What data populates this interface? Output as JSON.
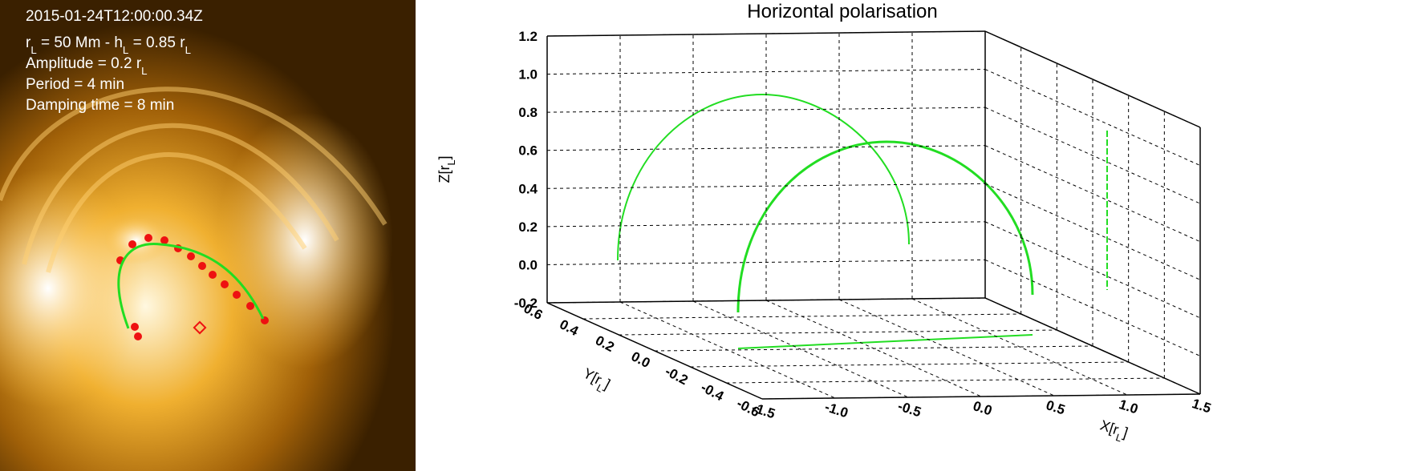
{
  "image_panel": {
    "lines": [
      [
        "2015-01-24T12:00:00.34Z"
      ],
      [
        "r",
        "L",
        " = 50 Mm - h",
        "L",
        " = 0.85 r",
        "L"
      ],
      [
        "Amplitude = 0.2 r",
        "L"
      ],
      [
        "Period = 4 min"
      ],
      [
        "Damping time = 8 min"
      ]
    ]
  },
  "plot": {
    "title": "Horizontal polarisation",
    "zlabel": [
      "Z[r",
      "L",
      "]"
    ],
    "xlabel": [
      "X[r",
      "L",
      "]"
    ],
    "ylabel": [
      "Y[r",
      "L",
      "]"
    ],
    "xlim": [
      -1.5,
      1.5
    ],
    "ylim": [
      -0.6,
      0.6
    ],
    "zlim": [
      -0.2,
      1.2
    ],
    "xticks": [
      -1.5,
      {
        "value": -1.0,
        "label": "-1.0"
      },
      -0.5,
      {
        "value": 0,
        "label": "0.0"
      },
      0.5,
      {
        "value": 1.0,
        "label": "1.0"
      },
      1.5
    ],
    "yticks": [
      -0.6,
      -0.4,
      -0.2,
      {
        "value": 0,
        "label": "0.0"
      },
      0.2,
      0.4,
      0.6
    ],
    "zticks": [
      -0.2,
      {
        "value": 0,
        "label": "0.0"
      },
      0.2,
      0.4,
      0.6,
      0.8,
      {
        "value": 1.0,
        "label": "1.0"
      },
      1.2
    ],
    "grid": true
  }
}
